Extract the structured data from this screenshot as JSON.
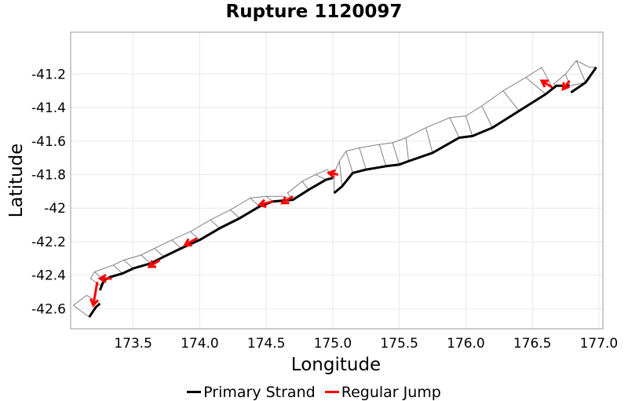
{
  "chart_data": {
    "type": "line",
    "title": "Rupture 1120097",
    "xlabel": "Longitude",
    "ylabel": "Latitude",
    "xlim": [
      173.03,
      177.03
    ],
    "ylim": [
      -42.72,
      -40.95
    ],
    "xticks": [
      173.5,
      174.0,
      174.5,
      175.0,
      175.5,
      176.0,
      176.5,
      177.0
    ],
    "xtick_labels": [
      "173.5",
      "174.0",
      "174.5",
      "175.0",
      "175.5",
      "176.0",
      "176.5",
      "177.0"
    ],
    "yticks": [
      -41.2,
      -41.4,
      -41.6,
      -41.8,
      -42.0,
      -42.2,
      -42.4,
      -42.6
    ],
    "ytick_labels": [
      "-41.2",
      "-41.4",
      "-41.6",
      "-41.8",
      "-42",
      "-42.2",
      "-42.4",
      "-42.6"
    ],
    "grid": true,
    "legend_position": "bottom",
    "colors": {
      "strand": "#000000",
      "jump": "#ff0000",
      "outline": "#808080",
      "grid": "#e8e8e8",
      "frame": "#999999"
    },
    "series": [
      {
        "name": "Primary Strand",
        "segments": [
          [
            [
              173.17,
              -42.65
            ],
            [
              173.22,
              -42.59
            ],
            [
              173.25,
              -42.57
            ]
          ],
          [
            [
              173.25,
              -42.49
            ],
            [
              173.28,
              -42.43
            ],
            [
              173.33,
              -42.41
            ],
            [
              173.42,
              -42.39
            ],
            [
              173.5,
              -42.36
            ],
            [
              173.63,
              -42.33
            ],
            [
              173.73,
              -42.29
            ],
            [
              173.86,
              -42.24
            ],
            [
              174.0,
              -42.19
            ],
            [
              174.15,
              -42.12
            ],
            [
              174.3,
              -42.06
            ],
            [
              174.45,
              -41.99
            ],
            [
              174.55,
              -41.96
            ],
            [
              174.7,
              -41.95
            ],
            [
              174.82,
              -41.89
            ],
            [
              174.95,
              -41.83
            ],
            [
              175.0,
              -41.82
            ]
          ],
          [
            [
              175.01,
              -41.91
            ],
            [
              175.07,
              -41.87
            ],
            [
              175.15,
              -41.79
            ],
            [
              175.25,
              -41.77
            ],
            [
              175.4,
              -41.75
            ],
            [
              175.5,
              -41.74
            ],
            [
              175.57,
              -41.72
            ],
            [
              175.75,
              -41.67
            ],
            [
              175.95,
              -41.58
            ],
            [
              176.05,
              -41.57
            ],
            [
              176.2,
              -41.52
            ],
            [
              176.4,
              -41.42
            ],
            [
              176.6,
              -41.32
            ],
            [
              176.68,
              -41.27
            ],
            [
              176.78,
              -41.27
            ]
          ],
          [
            [
              176.79,
              -41.31
            ],
            [
              176.9,
              -41.25
            ],
            [
              176.98,
              -41.16
            ]
          ]
        ]
      },
      {
        "name": "Regular Jump",
        "arrows": [
          [
            [
              173.23,
              -42.44
            ],
            [
              173.2,
              -42.58
            ]
          ],
          [
            [
              173.34,
              -42.42
            ],
            [
              173.25,
              -42.42
            ]
          ],
          [
            [
              173.7,
              -42.31
            ],
            [
              173.62,
              -42.35
            ]
          ],
          [
            [
              173.98,
              -42.18
            ],
            [
              173.89,
              -42.22
            ]
          ],
          [
            [
              174.55,
              -41.96
            ],
            [
              174.45,
              -41.98
            ]
          ],
          [
            [
              174.7,
              -41.93
            ],
            [
              174.62,
              -41.97
            ]
          ],
          [
            [
              175.04,
              -41.8
            ],
            [
              174.97,
              -41.79
            ]
          ],
          [
            [
              176.65,
              -41.28
            ],
            [
              176.57,
              -41.24
            ]
          ],
          [
            [
              176.78,
              -41.24
            ],
            [
              176.73,
              -41.29
            ]
          ]
        ]
      }
    ],
    "fault_sections": [
      {
        "trace": [
          [
            173.17,
            -42.65
          ],
          [
            173.25,
            -42.57
          ]
        ],
        "top": [
          [
            173.05,
            -42.58
          ],
          [
            173.15,
            -42.52
          ]
        ]
      },
      {
        "trace": [
          [
            173.25,
            -42.46
          ],
          [
            173.28,
            -42.43
          ],
          [
            173.42,
            -42.39
          ],
          [
            173.5,
            -42.36
          ],
          [
            173.63,
            -42.33
          ],
          [
            173.73,
            -42.29
          ],
          [
            173.86,
            -42.24
          ],
          [
            174.0,
            -42.19
          ],
          [
            174.15,
            -42.12
          ],
          [
            174.3,
            -42.06
          ],
          [
            174.45,
            -41.99
          ],
          [
            174.55,
            -41.96
          ],
          [
            174.7,
            -41.95
          ]
        ],
        "top": [
          [
            173.18,
            -42.42
          ],
          [
            173.21,
            -42.38
          ],
          [
            173.35,
            -42.34
          ],
          [
            173.43,
            -42.31
          ],
          [
            173.56,
            -42.28
          ],
          [
            173.66,
            -42.24
          ],
          [
            173.79,
            -42.19
          ],
          [
            173.93,
            -42.14
          ],
          [
            174.08,
            -42.07
          ],
          [
            174.23,
            -42.01
          ],
          [
            174.38,
            -41.94
          ],
          [
            174.5,
            -41.93
          ],
          [
            174.63,
            -41.93
          ]
        ]
      },
      {
        "trace": [
          [
            174.7,
            -41.95
          ],
          [
            174.82,
            -41.89
          ],
          [
            174.95,
            -41.83
          ],
          [
            175.0,
            -41.82
          ]
        ],
        "top": [
          [
            174.66,
            -41.91
          ],
          [
            174.77,
            -41.84
          ],
          [
            174.87,
            -41.8
          ],
          [
            174.96,
            -41.77
          ]
        ]
      },
      {
        "trace": [
          [
            175.01,
            -41.91
          ],
          [
            175.07,
            -41.87
          ],
          [
            175.15,
            -41.79
          ],
          [
            175.25,
            -41.77
          ],
          [
            175.4,
            -41.75
          ],
          [
            175.5,
            -41.74
          ],
          [
            175.57,
            -41.72
          ],
          [
            175.75,
            -41.67
          ],
          [
            175.95,
            -41.58
          ],
          [
            176.05,
            -41.57
          ],
          [
            176.2,
            -41.52
          ],
          [
            176.4,
            -41.42
          ],
          [
            176.6,
            -41.32
          ],
          [
            176.65,
            -41.28
          ]
        ],
        "top": [
          [
            175.01,
            -41.79
          ],
          [
            175.05,
            -41.72
          ],
          [
            175.1,
            -41.66
          ],
          [
            175.2,
            -41.64
          ],
          [
            175.35,
            -41.62
          ],
          [
            175.45,
            -41.61
          ],
          [
            175.55,
            -41.58
          ],
          [
            175.7,
            -41.52
          ],
          [
            175.88,
            -41.46
          ],
          [
            176.0,
            -41.45
          ],
          [
            176.12,
            -41.39
          ],
          [
            176.28,
            -41.3
          ],
          [
            176.45,
            -41.22
          ],
          [
            176.57,
            -41.16
          ]
        ]
      },
      {
        "trace": [
          [
            176.68,
            -41.27
          ],
          [
            176.78,
            -41.27
          ],
          [
            176.9,
            -41.25
          ],
          [
            176.98,
            -41.16
          ]
        ],
        "top": [
          [
            176.66,
            -41.26
          ],
          [
            176.75,
            -41.2
          ],
          [
            176.83,
            -41.12
          ],
          [
            176.93,
            -41.16
          ]
        ]
      }
    ]
  }
}
